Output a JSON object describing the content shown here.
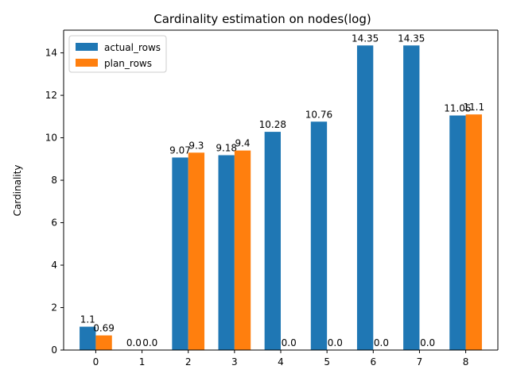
{
  "chart_data": {
    "type": "bar",
    "title": "Cardinality estimation on nodes(log)",
    "xlabel": "",
    "ylabel": "Cardinality",
    "categories": [
      "0",
      "1",
      "2",
      "3",
      "4",
      "5",
      "6",
      "7",
      "8"
    ],
    "series": [
      {
        "name": "actual_rows",
        "color": "#1f77b4",
        "values": [
          1.1,
          0.0,
          9.07,
          9.18,
          10.28,
          10.76,
          14.35,
          14.35,
          11.05
        ],
        "labels": [
          "1.1",
          "0.0",
          "9.07",
          "9.18",
          "10.28",
          "10.76",
          "14.35",
          "14.35",
          "11.05"
        ]
      },
      {
        "name": "plan_rows",
        "color": "#ff7f0e",
        "values": [
          0.69,
          0.0,
          9.3,
          9.4,
          0.0,
          0.0,
          0.0,
          0.0,
          11.1
        ],
        "labels": [
          "0.69",
          "0.0",
          "9.3",
          "9.4",
          "0.0",
          "0.0",
          "0.0",
          "0.0",
          "11.1"
        ]
      }
    ],
    "yticks": [
      0,
      2,
      4,
      6,
      8,
      10,
      12,
      14
    ],
    "ylim": [
      0,
      15.07
    ],
    "xlim": [
      -0.695,
      8.695
    ],
    "grid": false,
    "legend_position": "top-left"
  }
}
